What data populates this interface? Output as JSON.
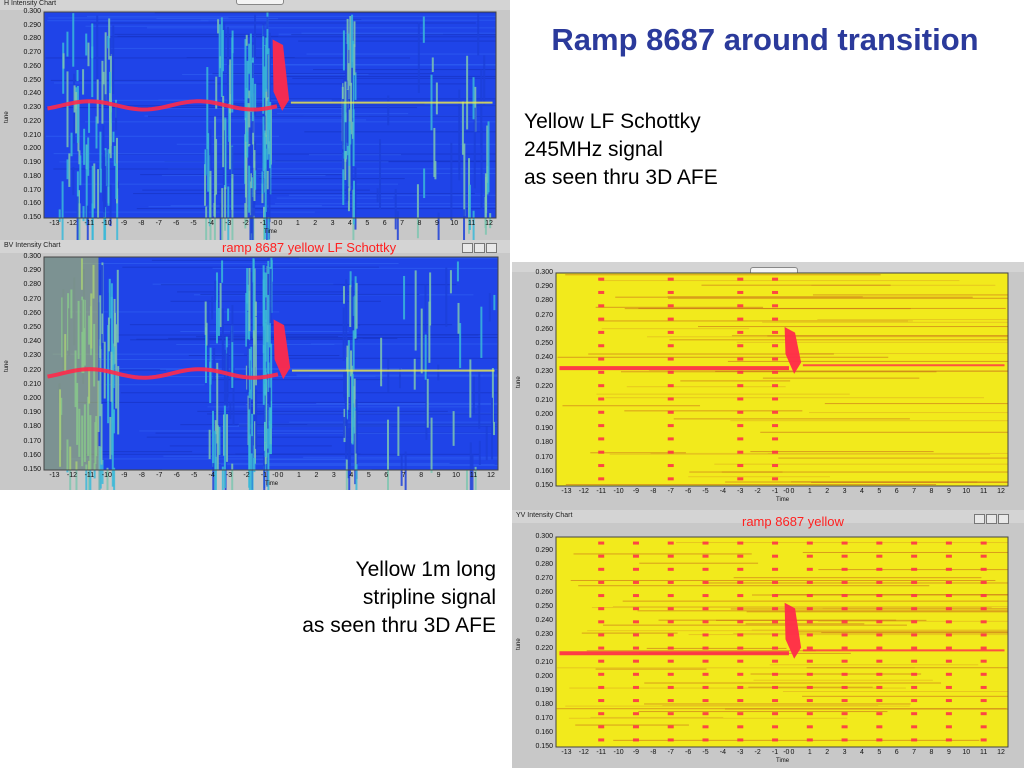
{
  "page": {
    "title": "Ramp 8687 around transition",
    "note_top": [
      "Yellow LF Schottky",
      "245MHz signal",
      "as seen thru 3D AFE"
    ],
    "note_bottom": [
      "Yellow 1m long",
      "stripline signal",
      "as seen thru 3D AFE"
    ]
  },
  "colors": {
    "title": "#2b3a9b",
    "label": "#ff2020",
    "blue_bg": "#1f44e8",
    "yellow_bg": "#f2ea1c",
    "signal": "#ff2a4a",
    "noise": "#f4f14a"
  },
  "chart_data": [
    {
      "id": "schottky-h",
      "type": "heatmap",
      "title": "H Intensity Chart",
      "label": "",
      "xlabel": "Time",
      "ylabel": "tune",
      "x_ticks": [
        "-13",
        "-12",
        "-11",
        "-10",
        "-9",
        "-8",
        "-7",
        "-6",
        "-5",
        "-4",
        "-3",
        "-2",
        "-1",
        "-0",
        "0",
        "1",
        "2",
        "3",
        "4",
        "5",
        "6",
        "7",
        "8",
        "9",
        "10",
        "11",
        "12"
      ],
      "y_ticks": [
        "0.300",
        "0.290",
        "0.280",
        "0.270",
        "0.260",
        "0.250",
        "0.240",
        "0.230",
        "0.220",
        "0.210",
        "0.200",
        "0.190",
        "0.180",
        "0.170",
        "0.160",
        "0.150"
      ],
      "ylim": [
        0.15,
        0.3
      ],
      "colormap": "blue",
      "signal_tune": 0.232,
      "transition_time": 0,
      "transition_peak_tune": 0.28
    },
    {
      "id": "schottky-v",
      "type": "heatmap",
      "title": "BV Intensity Chart",
      "label": "ramp 8687 yellow LF Schottky",
      "xlabel": "Time",
      "ylabel": "tune",
      "x_ticks": [
        "-13",
        "-12",
        "-11",
        "-10",
        "-9",
        "-8",
        "-7",
        "-6",
        "-5",
        "-4",
        "-3",
        "-2",
        "-1",
        "-0",
        "0",
        "1",
        "2",
        "3",
        "4",
        "5",
        "6",
        "7",
        "8",
        "9",
        "10",
        "11",
        "12"
      ],
      "y_ticks": [
        "0.300",
        "0.290",
        "0.280",
        "0.270",
        "0.260",
        "0.250",
        "0.240",
        "0.230",
        "0.220",
        "0.210",
        "0.200",
        "0.190",
        "0.180",
        "0.170",
        "0.160",
        "0.150"
      ],
      "ylim": [
        0.15,
        0.3
      ],
      "colormap": "blue",
      "signal_tune": 0.218,
      "transition_time": 0,
      "transition_peak_tune": 0.256
    },
    {
      "id": "stripline-h",
      "type": "heatmap",
      "title": "",
      "label": "",
      "xlabel": "Time",
      "ylabel": "tune",
      "x_ticks": [
        "-13",
        "-12",
        "-11",
        "-10",
        "-9",
        "-8",
        "-7",
        "-6",
        "-5",
        "-4",
        "-3",
        "-2",
        "-1",
        "-0",
        "0",
        "1",
        "2",
        "3",
        "4",
        "5",
        "6",
        "7",
        "8",
        "9",
        "10",
        "11",
        "12"
      ],
      "y_ticks": [
        "0.300",
        "0.290",
        "0.280",
        "0.270",
        "0.260",
        "0.250",
        "0.240",
        "0.230",
        "0.220",
        "0.210",
        "0.200",
        "0.190",
        "0.180",
        "0.170",
        "0.160",
        "0.150"
      ],
      "ylim": [
        0.15,
        0.3
      ],
      "colormap": "yellow",
      "signal_tune": 0.233,
      "transition_time": 0,
      "transition_peak_tune": 0.262
    },
    {
      "id": "stripline-v",
      "type": "heatmap",
      "title": "YV Intensity Chart",
      "label": "ramp 8687 yellow",
      "xlabel": "Time",
      "ylabel": "tune",
      "x_ticks": [
        "-13",
        "-12",
        "-11",
        "-10",
        "-9",
        "-8",
        "-7",
        "-6",
        "-5",
        "-4",
        "-3",
        "-2",
        "-1",
        "-0",
        "0",
        "1",
        "2",
        "3",
        "4",
        "5",
        "6",
        "7",
        "8",
        "9",
        "10",
        "11",
        "12"
      ],
      "y_ticks": [
        "0.300",
        "0.290",
        "0.280",
        "0.270",
        "0.260",
        "0.250",
        "0.240",
        "0.230",
        "0.220",
        "0.210",
        "0.200",
        "0.190",
        "0.180",
        "0.170",
        "0.160",
        "0.150"
      ],
      "ylim": [
        0.15,
        0.3
      ],
      "colormap": "yellow",
      "signal_tune": 0.217,
      "transition_time": 0,
      "transition_peak_tune": 0.253
    }
  ]
}
